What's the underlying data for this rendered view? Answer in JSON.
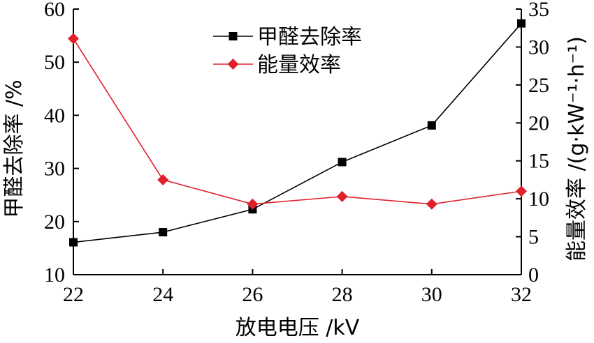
{
  "chart_data": {
    "type": "line",
    "x": [
      22,
      24,
      26,
      28,
      30,
      32
    ],
    "xlabel": "放电电压 /kV",
    "xlim": [
      22,
      32
    ],
    "xticks": [
      "22",
      "24",
      "26",
      "28",
      "30",
      "32"
    ],
    "ylabel_left": "甲醛去除率 /%",
    "ylim_left": [
      10,
      60
    ],
    "yticks_left": [
      "10",
      "20",
      "30",
      "40",
      "50",
      "60"
    ],
    "ylabel_right": "能量效率 /(g·kW⁻¹·h⁻¹)",
    "ylim_right": [
      0,
      35
    ],
    "yticks_right": [
      "0",
      "5",
      "10",
      "15",
      "20",
      "25",
      "30",
      "35"
    ],
    "legend_position": "top-center",
    "grid": false,
    "series": [
      {
        "name": "甲醛去除率",
        "axis": "left",
        "color": "#000000",
        "marker": "square",
        "values": [
          16.1,
          18.0,
          22.3,
          31.2,
          38.1,
          57.3
        ]
      },
      {
        "name": "能量效率",
        "axis": "right",
        "color": "#e0202b",
        "marker": "diamond",
        "values": [
          31.1,
          12.5,
          9.3,
          10.3,
          9.3,
          11.0
        ]
      }
    ]
  }
}
